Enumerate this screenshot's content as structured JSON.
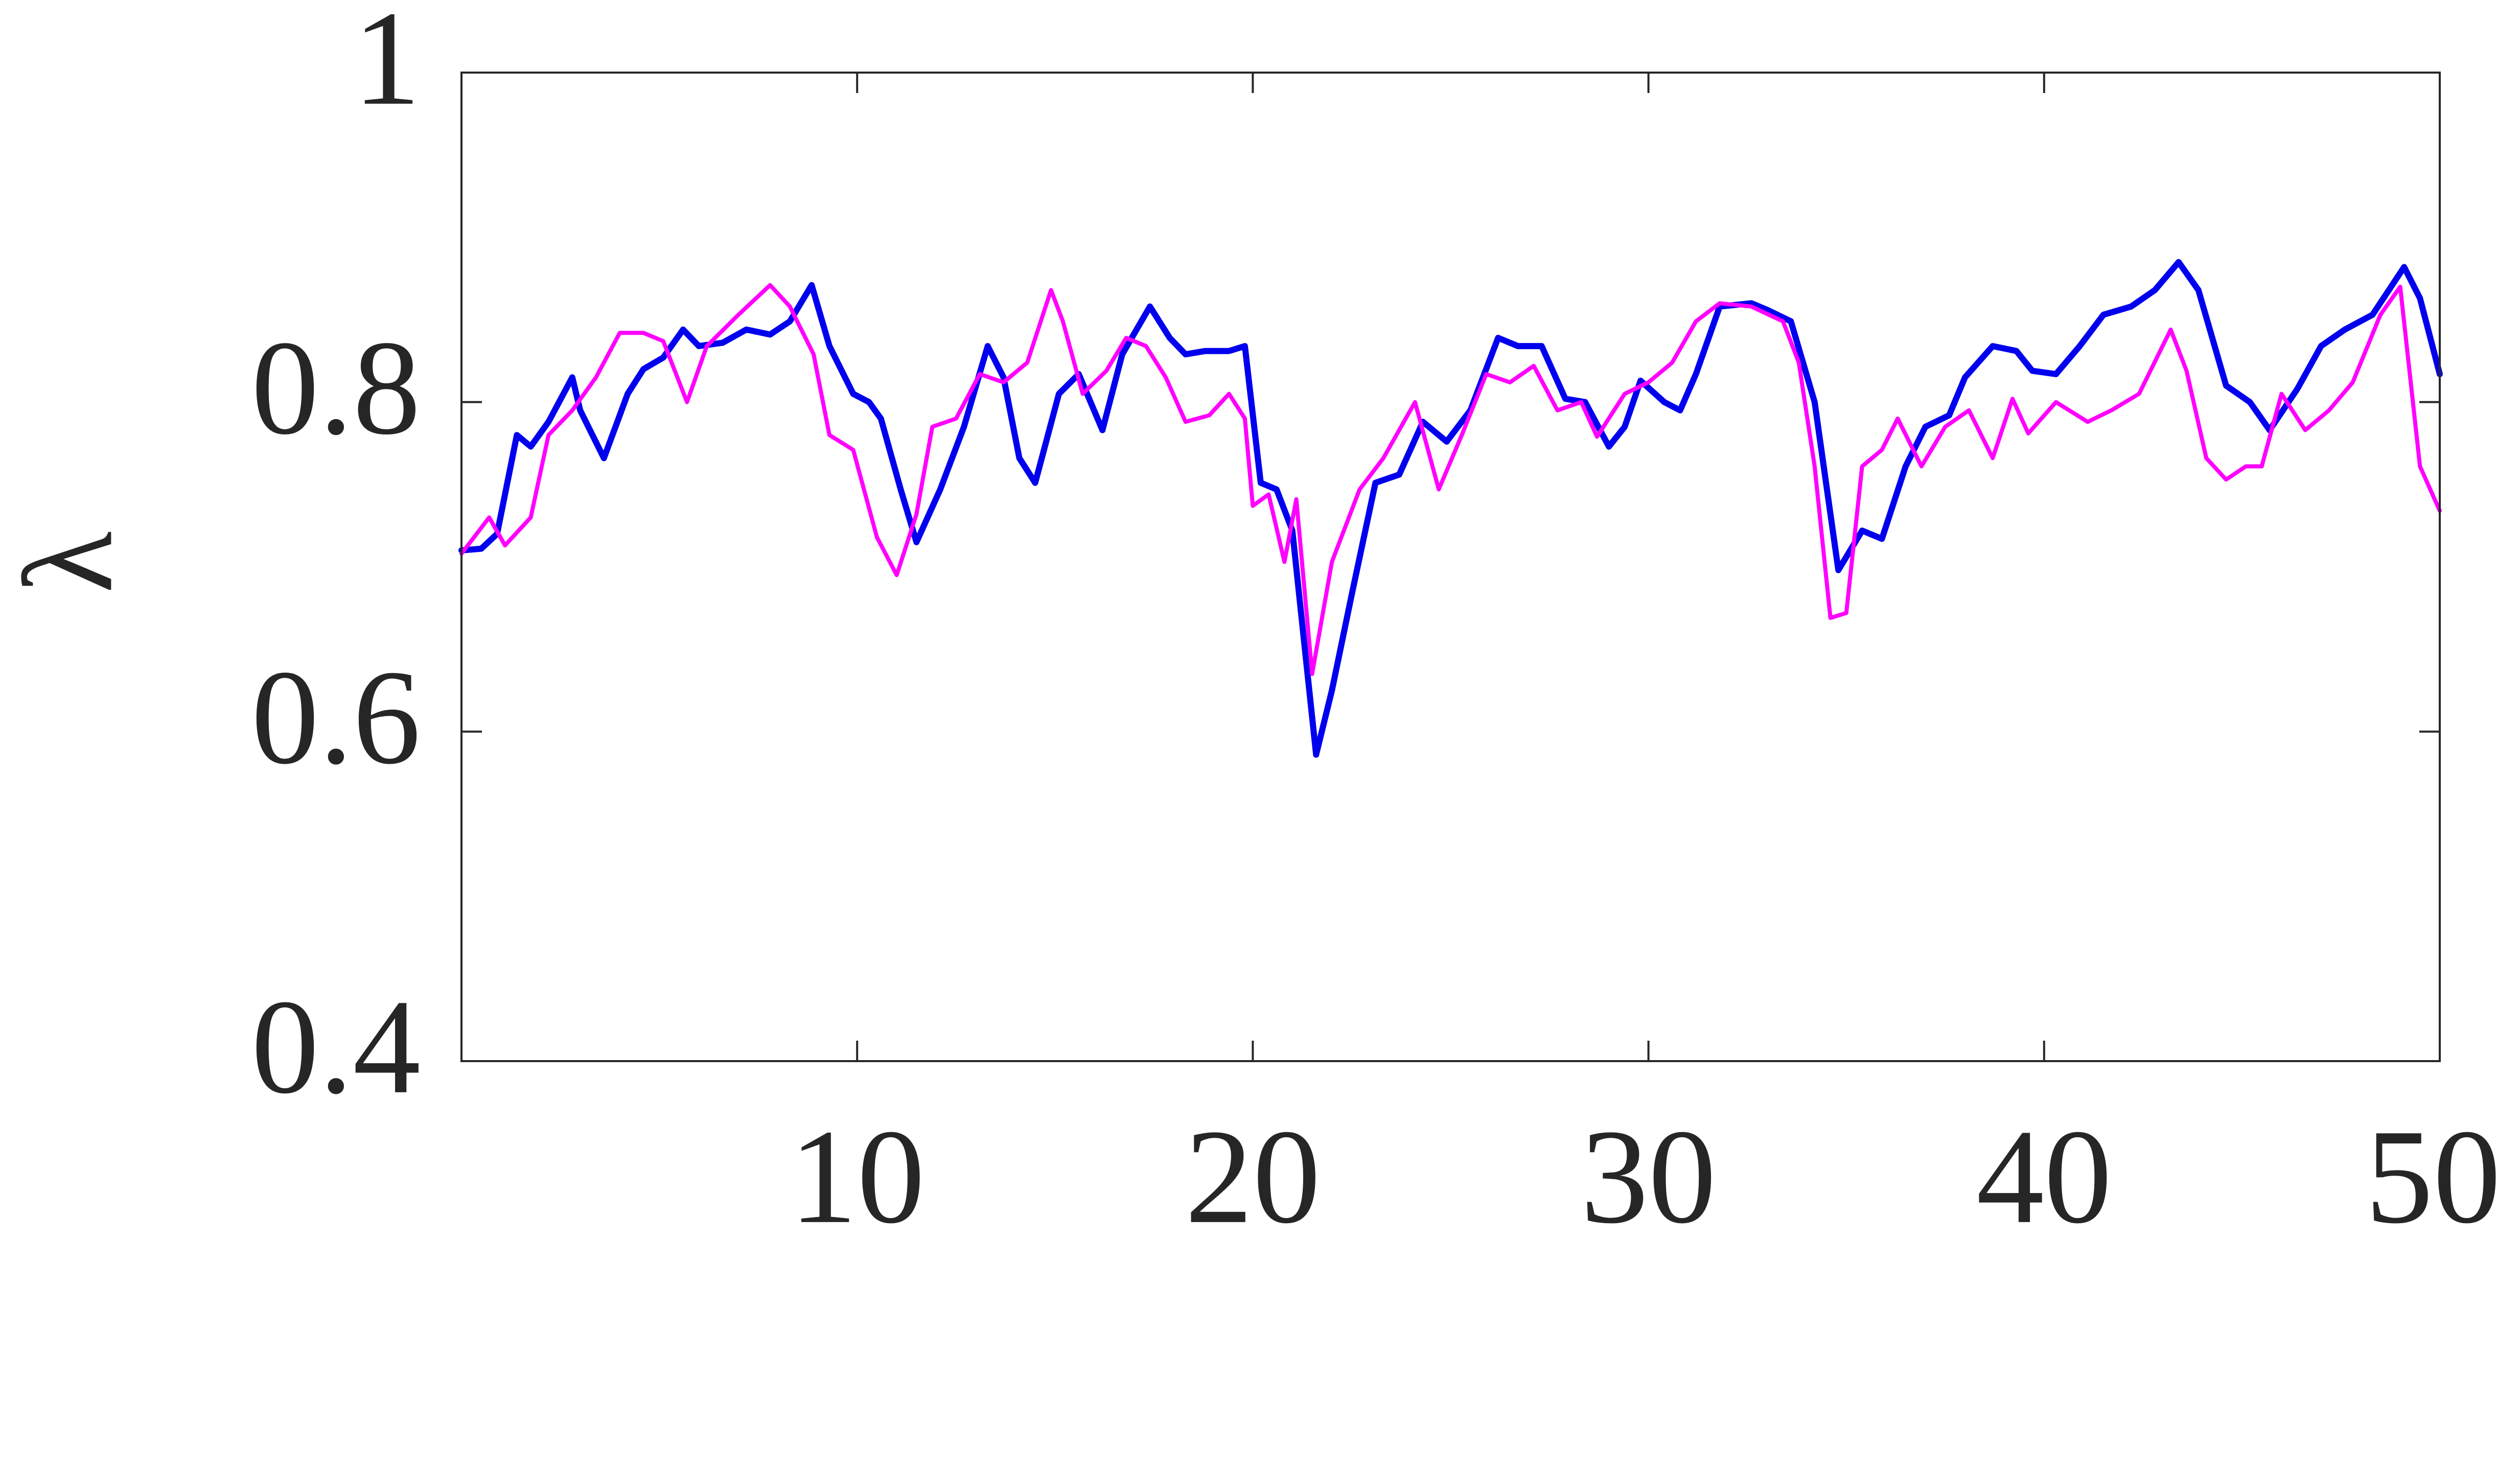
{
  "chart_data": {
    "type": "line",
    "y_label": "λ",
    "xlim": [
      0,
      50
    ],
    "ylim": [
      0.4,
      1
    ],
    "xticks": [
      10,
      20,
      30,
      40,
      50
    ],
    "yticks": [
      0.4,
      0.6,
      0.8,
      1
    ],
    "grid": false,
    "series": [
      {
        "color": "#0000ee",
        "line_width": 12,
        "x": [
          0,
          0.5,
          0.9,
          1.4,
          1.75,
          2.2,
          2.8,
          3.0,
          3.6,
          4.2,
          4.6,
          5.1,
          5.6,
          6.0,
          6.6,
          7.2,
          7.8,
          8.3,
          8.85,
          9.3,
          9.9,
          10.3,
          10.6,
          11.1,
          11.5,
          12.1,
          12.7,
          13.3,
          13.7,
          14.1,
          14.5,
          15.1,
          15.6,
          16.2,
          16.7,
          17.4,
          17.9,
          18.3,
          18.8,
          19.4,
          19.8,
          20.2,
          20.6,
          21.0,
          21.3,
          21.6,
          22.0,
          22.5,
          23.1,
          23.7,
          24.3,
          24.9,
          25.5,
          26.2,
          26.7,
          27.3,
          27.9,
          28.4,
          29.0,
          29.4,
          29.8,
          30.4,
          30.8,
          31.2,
          31.8,
          32.6,
          33.0,
          33.6,
          34.2,
          34.8,
          35.4,
          35.9,
          36.5,
          37.0,
          37.6,
          38.0,
          38.7,
          39.3,
          39.7,
          40.3,
          40.9,
          41.5,
          42.2,
          42.8,
          43.4,
          43.9,
          44.6,
          45.2,
          45.7,
          46.4,
          47.0,
          47.6,
          48.3,
          49.1,
          49.5,
          50.0
        ],
        "values": [
          0.71,
          0.711,
          0.72,
          0.78,
          0.773,
          0.788,
          0.815,
          0.795,
          0.766,
          0.805,
          0.82,
          0.827,
          0.844,
          0.834,
          0.836,
          0.844,
          0.841,
          0.849,
          0.871,
          0.834,
          0.805,
          0.8,
          0.79,
          0.747,
          0.715,
          0.747,
          0.785,
          0.834,
          0.815,
          0.766,
          0.751,
          0.805,
          0.817,
          0.783,
          0.829,
          0.858,
          0.839,
          0.829,
          0.831,
          0.831,
          0.834,
          0.751,
          0.747,
          0.722,
          0.654,
          0.586,
          0.625,
          0.683,
          0.751,
          0.756,
          0.788,
          0.776,
          0.795,
          0.839,
          0.834,
          0.834,
          0.802,
          0.8,
          0.773,
          0.785,
          0.813,
          0.8,
          0.795,
          0.817,
          0.858,
          0.86,
          0.856,
          0.849,
          0.8,
          0.698,
          0.722,
          0.717,
          0.761,
          0.785,
          0.792,
          0.815,
          0.834,
          0.831,
          0.819,
          0.817,
          0.834,
          0.853,
          0.858,
          0.868,
          0.885,
          0.868,
          0.81,
          0.8,
          0.783,
          0.808,
          0.834,
          0.844,
          0.853,
          0.882,
          0.863,
          0.817
        ]
      },
      {
        "color": "#ff00ff",
        "line_width": 8,
        "x": [
          0,
          0.7,
          1.1,
          1.75,
          2.2,
          2.8,
          3.4,
          4.0,
          4.6,
          5.1,
          5.7,
          6.2,
          7.0,
          7.8,
          8.3,
          8.9,
          9.3,
          9.9,
          10.5,
          11.0,
          11.5,
          11.9,
          12.5,
          13.1,
          13.7,
          14.3,
          14.9,
          15.2,
          15.7,
          16.3,
          16.8,
          17.3,
          17.8,
          18.3,
          18.9,
          19.4,
          19.8,
          20.0,
          20.4,
          20.8,
          21.1,
          21.5,
          22.0,
          22.7,
          23.3,
          24.1,
          24.7,
          25.3,
          25.9,
          26.5,
          27.1,
          27.7,
          28.3,
          28.7,
          29.4,
          30.0,
          30.6,
          31.2,
          31.8,
          32.6,
          33.4,
          33.8,
          34.2,
          34.6,
          35.0,
          35.4,
          35.9,
          36.3,
          36.9,
          37.5,
          38.1,
          38.7,
          39.2,
          39.6,
          40.3,
          41.1,
          41.7,
          42.4,
          43.2,
          43.6,
          44.1,
          44.6,
          45.1,
          45.5,
          46.0,
          46.6,
          47.2,
          47.8,
          48.5,
          49.0,
          49.5,
          50.0
        ],
        "values": [
          0.708,
          0.73,
          0.713,
          0.73,
          0.78,
          0.795,
          0.815,
          0.842,
          0.842,
          0.837,
          0.8,
          0.834,
          0.853,
          0.871,
          0.858,
          0.829,
          0.78,
          0.771,
          0.718,
          0.695,
          0.732,
          0.785,
          0.79,
          0.817,
          0.812,
          0.824,
          0.868,
          0.849,
          0.805,
          0.819,
          0.839,
          0.834,
          0.815,
          0.788,
          0.792,
          0.805,
          0.79,
          0.737,
          0.744,
          0.703,
          0.741,
          0.635,
          0.703,
          0.747,
          0.766,
          0.8,
          0.747,
          0.781,
          0.817,
          0.812,
          0.822,
          0.795,
          0.8,
          0.779,
          0.805,
          0.812,
          0.824,
          0.849,
          0.86,
          0.858,
          0.849,
          0.824,
          0.761,
          0.669,
          0.672,
          0.761,
          0.771,
          0.79,
          0.761,
          0.785,
          0.795,
          0.766,
          0.802,
          0.781,
          0.8,
          0.788,
          0.795,
          0.805,
          0.844,
          0.819,
          0.766,
          0.753,
          0.761,
          0.761,
          0.805,
          0.783,
          0.795,
          0.812,
          0.853,
          0.87,
          0.761,
          0.734
        ]
      }
    ]
  }
}
